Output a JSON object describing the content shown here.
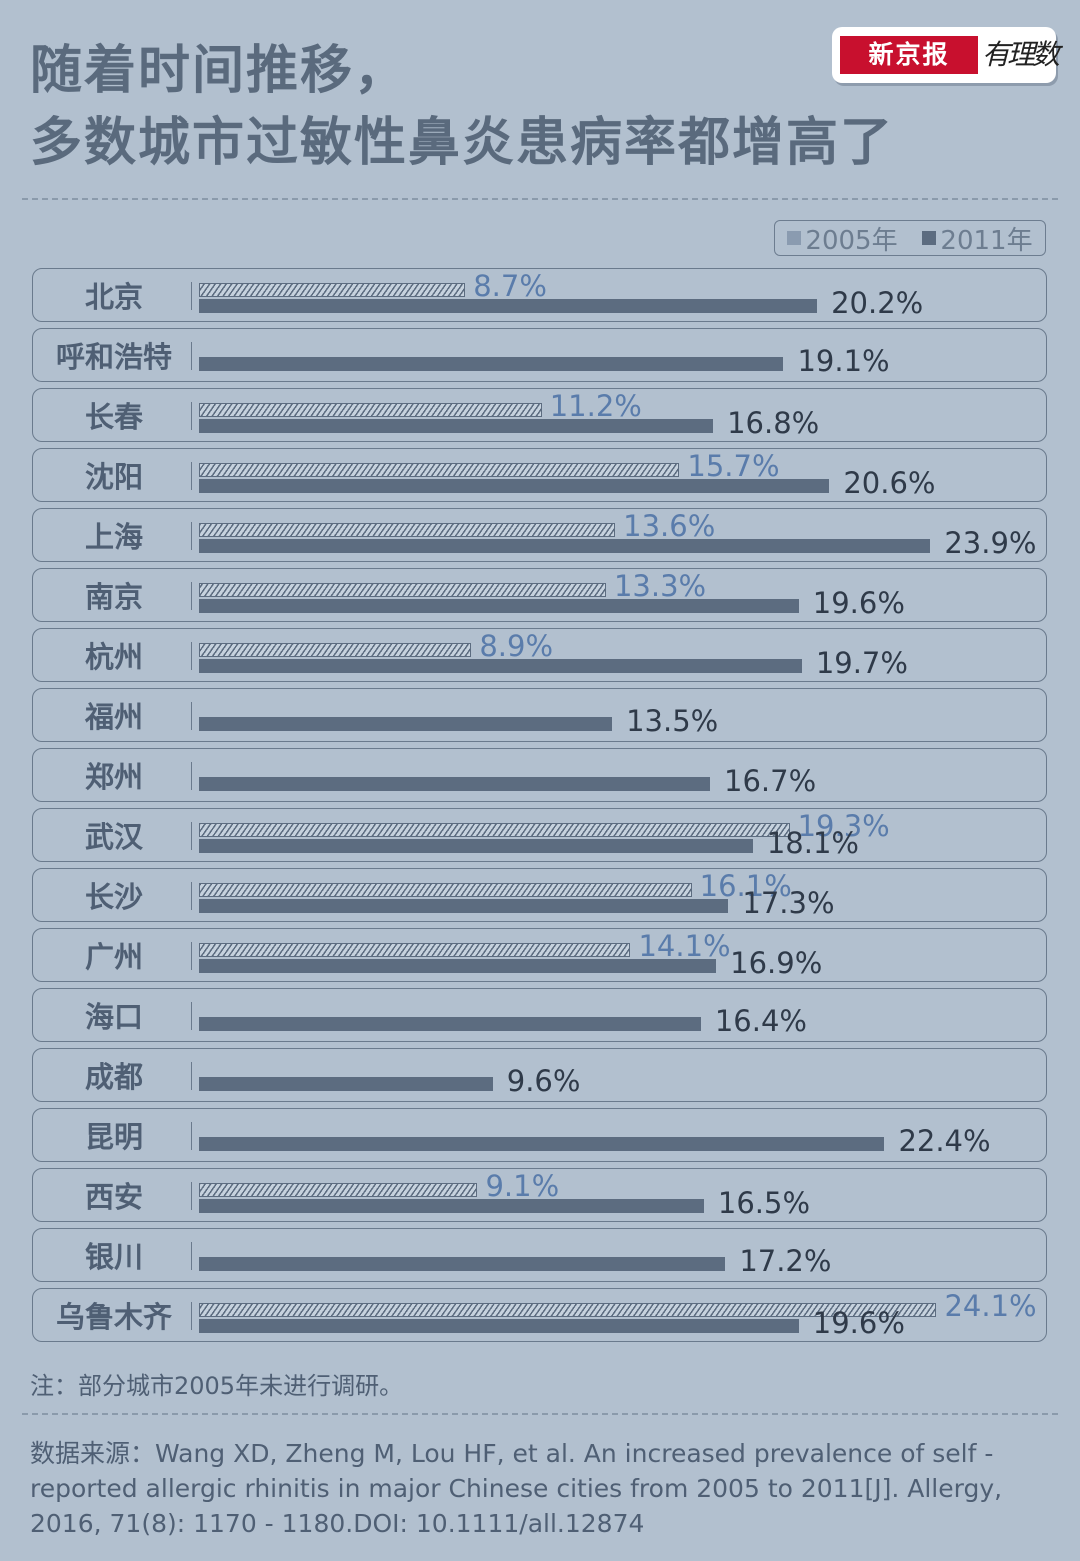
{
  "header": {
    "title_line1": "随着时间推移，",
    "title_line2": "多数城市过敏性鼻炎患病率都增高了",
    "logo_text": "新京报",
    "logo_script": "有理数"
  },
  "legend": {
    "series_2005": "2005年",
    "series_2011": "2011年"
  },
  "chart_data": {
    "type": "bar",
    "orientation": "horizontal",
    "categories": [
      "北京",
      "呼和浩特",
      "长春",
      "沈阳",
      "上海",
      "南京",
      "杭州",
      "福州",
      "郑州",
      "武汉",
      "长沙",
      "广州",
      "海口",
      "成都",
      "昆明",
      "西安",
      "银川",
      "乌鲁木齐"
    ],
    "series": [
      {
        "name": "2005年",
        "values": [
          8.7,
          null,
          11.2,
          15.7,
          13.6,
          13.3,
          8.9,
          null,
          null,
          19.3,
          16.1,
          14.1,
          null,
          null,
          null,
          9.1,
          null,
          24.1
        ],
        "labels": [
          "8.7%",
          "",
          "11.2%",
          "15.7%",
          "13.6%",
          "13.3%",
          "8.9%",
          "",
          "",
          "19.3%",
          "16.1%",
          "14.1%",
          "",
          "",
          "",
          "9.1%",
          "",
          "24.1%"
        ],
        "color": "#8a9bb0",
        "pattern": "hatched"
      },
      {
        "name": "2011年",
        "values": [
          20.2,
          19.1,
          16.8,
          20.6,
          23.9,
          19.6,
          19.7,
          13.5,
          16.7,
          18.1,
          17.3,
          16.9,
          16.4,
          9.6,
          22.4,
          16.5,
          17.2,
          19.6
        ],
        "labels": [
          "20.2%",
          "19.1%",
          "16.8%",
          "20.6%",
          "23.9%",
          "19.6%",
          "19.7%",
          "13.5%",
          "16.7%",
          "18.1%",
          "17.3%",
          "16.9%",
          "16.4%",
          "9.6%",
          "22.4%",
          "16.5%",
          "17.2%",
          "19.6%"
        ],
        "color": "#5c6c80"
      }
    ],
    "unit": "%",
    "xlim": [
      0,
      24.1
    ]
  },
  "note": "注：部分城市2005年未进行调研。",
  "source": "数据来源：Wang XD, Zheng M, Lou HF, et al. An increased prevalence of self - reported allergic rhinitis in major Chinese cities from 2005 to 2011[J]. Allergy, 2016, 71(8): 1170 - 1180.DOI: 10.1111/all.12874"
}
